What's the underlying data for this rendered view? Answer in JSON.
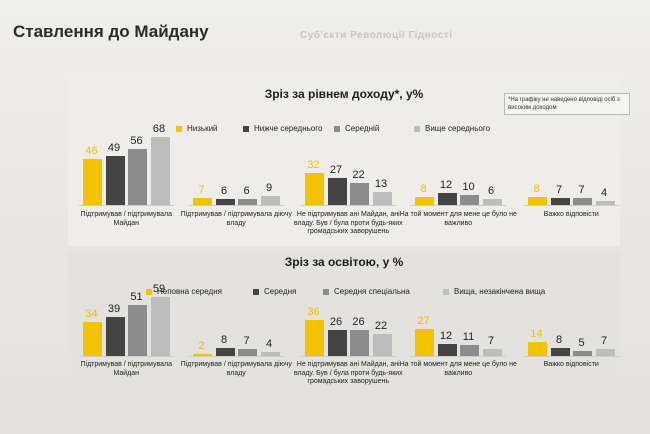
{
  "page": {
    "title": "Ставлення до Майдану",
    "ghost_title": "Суб'єкти Революції Гідності"
  },
  "note": "*На графіку не наведено відповіді осіб з високим доходом",
  "colors": {
    "income": [
      "#f2c300",
      "#444444",
      "#8c8c8c",
      "#bdbdbd"
    ],
    "education": [
      "#f2c300",
      "#444444",
      "#8c8c8c",
      "#bdbdbd"
    ],
    "value_first": "#f0c000",
    "value_other": "#222222"
  },
  "chart_data": [
    {
      "type": "bar",
      "title": "Зріз за рівнем доходу*, у%",
      "categories": [
        "Підтримував / підтримувала Майдан",
        "Підтримував / підтримувала діючу владу",
        "Не підтримував ані Майдан, ані владу. Був / була проти будь-яких громадських заворушень",
        "На той момент для мене це було не важливо",
        "Важко відповісти"
      ],
      "series": [
        {
          "name": "Низький",
          "values": [
            46,
            7,
            32,
            8,
            8
          ]
        },
        {
          "name": "Нижче середнього",
          "values": [
            49,
            6,
            27,
            12,
            7
          ]
        },
        {
          "name": "Середній",
          "values": [
            56,
            6,
            22,
            10,
            7
          ]
        },
        {
          "name": "Вище середнього",
          "values": [
            68,
            9,
            13,
            6,
            4
          ]
        }
      ],
      "ylim": [
        0,
        70
      ]
    },
    {
      "type": "bar",
      "title": "Зріз за освітою, у %",
      "categories": [
        "Підтримував / підтримувала Майдан",
        "Підтримував / підтримувала діючу владу",
        "Не підтримував ані Майдан, ані владу. Був / була проти будь-яких громадських заворушень",
        "На той момент для мене це було не важливо",
        "Важко відповісти"
      ],
      "series": [
        {
          "name": "Неповна середня",
          "values": [
            34,
            2,
            36,
            27,
            14
          ]
        },
        {
          "name": "Середня",
          "values": [
            39,
            8,
            26,
            12,
            8
          ]
        },
        {
          "name": "Середня спеціальна",
          "values": [
            51,
            7,
            26,
            11,
            5
          ]
        },
        {
          "name": "Вища, незакінчена вища",
          "values": [
            59,
            4,
            22,
            7,
            7
          ]
        }
      ],
      "ylim": [
        0,
        70
      ]
    }
  ]
}
